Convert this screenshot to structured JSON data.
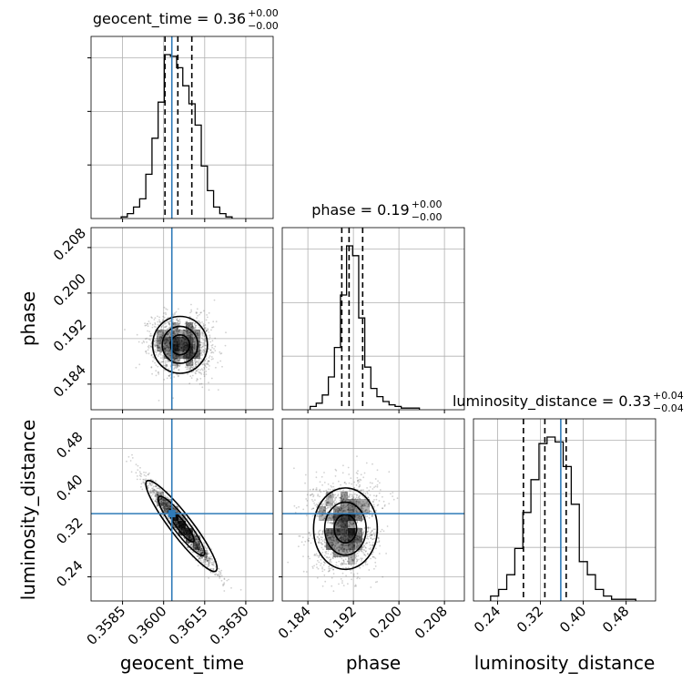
{
  "chart_data": {
    "type": "corner",
    "parameters": [
      "geocent_time",
      "phase",
      "luminosity_distance"
    ],
    "titles": [
      {
        "name": "geocent_time",
        "median": "0.36",
        "plus": "+0.00",
        "minus": "−0.00"
      },
      {
        "name": "phase",
        "median": "0.19",
        "plus": "+0.00",
        "minus": "−0.00"
      },
      {
        "name": "luminosity_distance",
        "median": "0.33",
        "plus": "+0.04",
        "minus": "−0.04"
      }
    ],
    "axes": {
      "geocent_time": {
        "range": [
          0.35735,
          0.364
        ],
        "ticks": [
          0.3585,
          0.36,
          0.3615,
          0.363
        ],
        "tick_labels": [
          "0.3585",
          "0.3600",
          "0.3615",
          "0.3630"
        ]
      },
      "phase": {
        "range": [
          0.1795,
          0.2115
        ],
        "ticks": [
          0.184,
          0.192,
          0.2,
          0.208
        ],
        "tick_labels": [
          "0.184",
          "0.192",
          "0.200",
          "0.208"
        ]
      },
      "luminosity_distance": {
        "range": [
          0.195,
          0.535
        ],
        "ticks": [
          0.24,
          0.32,
          0.4,
          0.48
        ],
        "tick_labels": [
          "0.24",
          "0.32",
          "0.40",
          "0.48"
        ]
      }
    },
    "truths": {
      "geocent_time": 0.3603,
      "phase": null,
      "luminosity_distance": 0.358
    },
    "quantiles": {
      "geocent_time": [
        0.36005,
        0.36052,
        0.36103
      ],
      "phase": [
        0.18996,
        0.19124,
        0.19363
      ],
      "luminosity_distance": [
        0.2883,
        0.3283,
        0.3681
      ]
    },
    "histograms": {
      "geocent_time": {
        "x_start": 0.35845,
        "x_end": 0.3625,
        "counts": [
          1,
          3,
          7,
          12,
          27,
          49,
          71,
          100,
          99,
          92,
          81,
          70,
          57,
          32,
          17,
          7,
          3,
          1
        ]
      },
      "phase": {
        "x_start": 0.1844,
        "x_end": 0.2036,
        "counts": [
          2,
          4,
          9,
          20,
          38,
          70,
          100,
          94,
          56,
          26,
          13,
          8,
          5,
          3,
          2,
          1,
          1,
          1
        ]
      },
      "luminosity_distance": {
        "x_start": 0.227,
        "x_end": 0.498,
        "counts": [
          3,
          7,
          16,
          32,
          54,
          74,
          96,
          100,
          97,
          82,
          59,
          24,
          16,
          7,
          3,
          1,
          1,
          1
        ]
      }
    },
    "scatter_2d": {
      "phase_vs_geocent_time": {
        "center": [
          0.3606,
          0.1909
        ],
        "spread": [
          0.0005,
          0.0025
        ],
        "corr": -0.15
      },
      "luminosity_distance_vs_geocent_time": {
        "center": [
          0.36065,
          0.335
        ],
        "spread": [
          0.0006,
          0.04
        ],
        "corr": -0.97
      },
      "luminosity_distance_vs_phase": {
        "center": [
          0.1906,
          0.33
        ],
        "spread": [
          0.0028,
          0.038
        ],
        "corr": 0.05
      }
    },
    "grid": true
  }
}
